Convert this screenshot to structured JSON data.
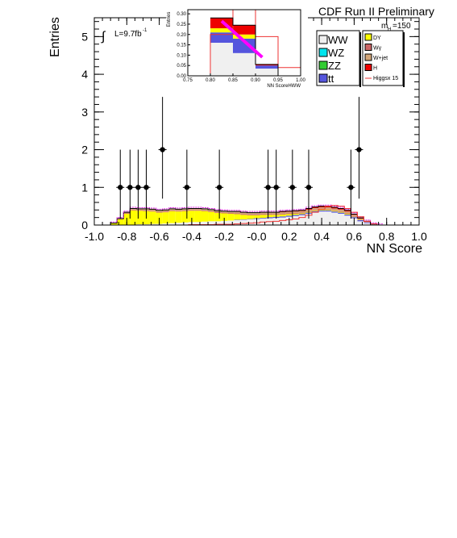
{
  "chart_data": {
    "type": "bar",
    "title": "CDF Run II Preliminary",
    "xlabel": "NN Score",
    "ylabel": "Entries",
    "xlim": [
      -1.0,
      1.0
    ],
    "ylim": [
      0,
      5.5
    ],
    "x_ticks": [
      "-1.0",
      "-0.8",
      "-0.6",
      "-0.4",
      "-0.2",
      "-0.0",
      "0.2",
      "0.4",
      "0.6",
      "0.8",
      "1.0"
    ],
    "y_ticks": [
      "0",
      "1",
      "2",
      "3",
      "4",
      "5"
    ],
    "lumi_label": "L=9.7fb",
    "lumi_sup": "-1",
    "mass_label": "m",
    "mass_sub": "H",
    "mass_value": "=150",
    "bin_edges_start": -0.9,
    "bin_width": 0.04,
    "stack": [
      {
        "name": "WW",
        "color": "#f0f0f0",
        "values": [
          0,
          0,
          0,
          0.01,
          0.02,
          0.02,
          0.03,
          0.03,
          0.04,
          0.05,
          0.06,
          0.07,
          0.08,
          0.08,
          0.09,
          0.1,
          0.1,
          0.11,
          0.12,
          0.13,
          0.14,
          0.15,
          0.16,
          0.17,
          0.18,
          0.19,
          0.2,
          0.22,
          0.24,
          0.26,
          0.3,
          0.34,
          0.36,
          0.36,
          0.33,
          0.3,
          0.25,
          0.18,
          0.1,
          0.05,
          0.02,
          0
        ]
      },
      {
        "name": "WZ",
        "color": "#00e5ee",
        "values": [
          0,
          0,
          0,
          0,
          0,
          0,
          0,
          0,
          0,
          0,
          0,
          0,
          0,
          0,
          0,
          0,
          0,
          0,
          0,
          0,
          0,
          0,
          0,
          0,
          0,
          0,
          0,
          0,
          0,
          0,
          0,
          0,
          0,
          0,
          0,
          0,
          0,
          0,
          0,
          0,
          0,
          0
        ]
      },
      {
        "name": "ZZ",
        "color": "#33cc33",
        "values": [
          0,
          0,
          0,
          0,
          0,
          0,
          0,
          0,
          0,
          0,
          0,
          0,
          0,
          0,
          0,
          0,
          0,
          0,
          0,
          0,
          0,
          0,
          0,
          0,
          0,
          0,
          0,
          0,
          0,
          0,
          0,
          0,
          0,
          0,
          0,
          0,
          0,
          0,
          0,
          0,
          0,
          0
        ]
      },
      {
        "name": "tt",
        "color": "#5555dd",
        "values": [
          0,
          0,
          0,
          0,
          0,
          0,
          0,
          0,
          0,
          0,
          0,
          0,
          0,
          0,
          0,
          0,
          0,
          0,
          0,
          0.01,
          0.01,
          0.01,
          0.02,
          0.02,
          0.03,
          0.03,
          0.03,
          0.03,
          0.03,
          0.03,
          0.03,
          0.03,
          0.03,
          0.03,
          0.03,
          0.03,
          0.03,
          0.03,
          0.03,
          0.02,
          0.01,
          0
        ]
      },
      {
        "name": "DY",
        "color": "#ffff00",
        "values": [
          0.05,
          0.15,
          0.3,
          0.38,
          0.36,
          0.35,
          0.33,
          0.3,
          0.3,
          0.32,
          0.3,
          0.3,
          0.3,
          0.3,
          0.28,
          0.25,
          0.22,
          0.2,
          0.18,
          0.15,
          0.12,
          0.1,
          0.08,
          0.08,
          0.06,
          0.05,
          0.05,
          0.04,
          0.03,
          0.02,
          0.02,
          0.02,
          0.02,
          0.02,
          0.02,
          0.02,
          0.02,
          0.01,
          0.01,
          0,
          0,
          0
        ]
      },
      {
        "name": "Wγ",
        "color": "#cc6666",
        "values": [
          0,
          0.01,
          0.02,
          0.02,
          0.02,
          0.02,
          0.02,
          0.02,
          0.02,
          0.02,
          0.02,
          0.02,
          0.02,
          0.02,
          0.02,
          0.02,
          0.02,
          0.02,
          0.02,
          0.02,
          0.02,
          0.02,
          0.02,
          0.02,
          0.02,
          0.02,
          0.02,
          0.02,
          0.02,
          0.02,
          0.02,
          0.02,
          0.02,
          0.02,
          0.02,
          0.02,
          0.02,
          0.02,
          0.01,
          0.01,
          0,
          0
        ]
      },
      {
        "name": "W+jet",
        "color": "#d2a679",
        "values": [
          0,
          0.01,
          0.02,
          0.03,
          0.03,
          0.04,
          0.04,
          0.04,
          0.04,
          0.04,
          0.04,
          0.04,
          0.04,
          0.04,
          0.04,
          0.04,
          0.04,
          0.04,
          0.04,
          0.04,
          0.04,
          0.04,
          0.04,
          0.04,
          0.04,
          0.04,
          0.04,
          0.04,
          0.04,
          0.04,
          0.04,
          0.04,
          0.04,
          0.04,
          0.04,
          0.04,
          0.04,
          0.03,
          0.02,
          0.01,
          0,
          0
        ]
      },
      {
        "name": "H",
        "color": "#ee0000",
        "values": [
          0,
          0,
          0,
          0,
          0,
          0,
          0,
          0,
          0,
          0,
          0,
          0,
          0,
          0,
          0,
          0,
          0,
          0,
          0,
          0.01,
          0.01,
          0.01,
          0.01,
          0.01,
          0.01,
          0.01,
          0.02,
          0.02,
          0.02,
          0.02,
          0.03,
          0.03,
          0.03,
          0.03,
          0.03,
          0.03,
          0.03,
          0.02,
          0.02,
          0.01,
          0,
          0
        ]
      }
    ],
    "higgs_line": {
      "name": "Higgsx 15",
      "color": "#ee3333",
      "values": [
        0,
        0,
        0,
        0,
        0,
        0,
        0,
        0,
        0,
        0,
        0,
        0,
        0.01,
        0.01,
        0.01,
        0.01,
        0.02,
        0.02,
        0.02,
        0.03,
        0.04,
        0.05,
        0.06,
        0.08,
        0.09,
        0.1,
        0.12,
        0.14,
        0.16,
        0.2,
        0.26,
        0.34,
        0.42,
        0.5,
        0.52,
        0.5,
        0.44,
        0.34,
        0.22,
        0.1,
        0.03,
        0
      ]
    },
    "points": [
      {
        "x": -0.84,
        "y": 1
      },
      {
        "x": -0.78,
        "y": 1
      },
      {
        "x": -0.73,
        "y": 1
      },
      {
        "x": -0.68,
        "y": 1
      },
      {
        "x": -0.58,
        "y": 2
      },
      {
        "x": -0.43,
        "y": 1
      },
      {
        "x": -0.23,
        "y": 1
      },
      {
        "x": 0.07,
        "y": 1
      },
      {
        "x": 0.12,
        "y": 1
      },
      {
        "x": 0.22,
        "y": 1
      },
      {
        "x": 0.32,
        "y": 1
      },
      {
        "x": 0.58,
        "y": 1
      },
      {
        "x": 0.63,
        "y": 2
      }
    ],
    "legend_left": [
      {
        "label": "WW",
        "color": "#f0f0f0"
      },
      {
        "label": "WZ",
        "color": "#00e5ee"
      },
      {
        "label": "ZZ",
        "color": "#33cc33"
      },
      {
        "label": "tt",
        "color": "#5555dd"
      }
    ],
    "legend_right": [
      {
        "label": "DY",
        "color": "#ffff00"
      },
      {
        "label": "Wγ",
        "color": "#cc6666"
      },
      {
        "label": "W+jet",
        "color": "#d2a679"
      },
      {
        "label": "H",
        "color": "#ee0000"
      },
      {
        "label": "Higgsx 15",
        "color": "#ee3333"
      }
    ],
    "inset": {
      "xlabel": "NN ScoreHWW",
      "ylabel": "Entries",
      "xlim": [
        0.75,
        1.0
      ],
      "ylim": [
        0,
        0.32
      ],
      "x_ticks": [
        "0.75",
        "0.80",
        "0.85",
        "0.90",
        "0.95",
        "1.00"
      ],
      "y_ticks": [
        "0.00",
        "0.05",
        "0.10",
        "0.15",
        "0.20",
        "0.25",
        "0.30"
      ],
      "bins": [
        0.8,
        0.85,
        0.9,
        0.95,
        1.0
      ],
      "stack": [
        {
          "name": "WW",
          "color": "#f0f0f0",
          "values": [
            0.16,
            0.11,
            0.035,
            0
          ]
        },
        {
          "name": "tt",
          "color": "#5555dd",
          "values": [
            0.05,
            0.07,
            0.015,
            0
          ]
        },
        {
          "name": "DY",
          "color": "#ffff00",
          "values": [
            0.02,
            0.02,
            0,
            0
          ]
        },
        {
          "name": "H",
          "color": "#ee0000",
          "values": [
            0.05,
            0.045,
            0.005,
            0
          ]
        }
      ],
      "higgs_line": [
        0.2,
        0.4,
        0.19,
        0.04
      ],
      "magenta_from": [
        0.825,
        0.265
      ],
      "magenta_to": [
        0.915,
        0.09
      ]
    }
  }
}
